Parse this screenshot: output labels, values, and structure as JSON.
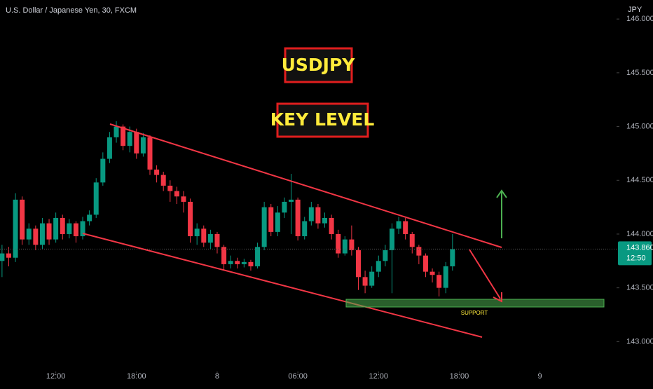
{
  "chart_data": {
    "type": "candlestick",
    "title": "U.S. Dollar / Japanese Yen, 30, FXCM",
    "currency": "JPY",
    "annotations": [
      "USDJPY",
      "KEY LEVEL",
      "SUPPORT"
    ],
    "up_color": "#089981",
    "down_color": "#f23645",
    "open": [
      143.75,
      143.82,
      143.78,
      144.32,
      143.95,
      144.05,
      143.9,
      144.1,
      143.95,
      144.15,
      144.0,
      144.1,
      143.98,
      144.12,
      144.18,
      144.48,
      144.7,
      144.9,
      145.0,
      144.82,
      144.95,
      144.75,
      144.9,
      144.6,
      144.55,
      144.45,
      144.4,
      144.35,
      144.3,
      143.98,
      144.05,
      143.92,
      144.0,
      143.88,
      143.72,
      143.75,
      143.72,
      143.74,
      143.7,
      143.88,
      144.25,
      144.02,
      144.2,
      144.3,
      144.32,
      143.98,
      144.12,
      144.25,
      144.1,
      144.15,
      144.0,
      143.82,
      143.95,
      143.85,
      143.6,
      143.52,
      143.65,
      143.75,
      143.85,
      144.05,
      144.12,
      144.0,
      143.88,
      143.8,
      143.65,
      143.62,
      143.5,
      143.7
    ],
    "high": [
      143.9,
      143.88,
      144.38,
      144.35,
      144.1,
      144.08,
      144.15,
      144.14,
      144.2,
      144.18,
      144.14,
      144.12,
      144.16,
      144.22,
      144.52,
      144.76,
      144.95,
      145.05,
      145.02,
      145.0,
      144.98,
      144.94,
      144.92,
      144.64,
      144.58,
      144.5,
      144.44,
      144.4,
      144.33,
      144.1,
      144.08,
      144.04,
      144.02,
      143.9,
      143.8,
      143.78,
      143.77,
      143.76,
      143.92,
      144.3,
      144.28,
      144.26,
      144.34,
      144.56,
      144.34,
      144.16,
      144.3,
      144.28,
      144.2,
      144.18,
      144.04,
      143.98,
      144.08,
      143.88,
      143.66,
      143.7,
      143.8,
      143.9,
      144.1,
      144.16,
      144.15,
      144.02,
      143.9,
      143.82,
      143.68,
      143.65,
      143.74,
      144.0
    ],
    "low": [
      143.6,
      143.7,
      143.74,
      143.9,
      143.9,
      143.85,
      143.86,
      143.9,
      143.92,
      143.95,
      143.96,
      143.92,
      143.95,
      144.08,
      144.15,
      144.45,
      144.66,
      144.85,
      144.78,
      144.76,
      144.7,
      144.72,
      144.55,
      144.48,
      144.4,
      144.3,
      144.28,
      144.2,
      143.92,
      143.9,
      143.88,
      143.86,
      143.82,
      143.66,
      143.68,
      143.68,
      143.69,
      143.66,
      143.68,
      143.85,
      143.98,
      143.98,
      144.15,
      144.0,
      143.94,
      143.95,
      144.08,
      144.05,
      144.06,
      143.95,
      143.78,
      143.8,
      143.8,
      143.48,
      143.45,
      143.5,
      143.6,
      143.7,
      143.45,
      144.0,
      143.95,
      143.82,
      143.72,
      143.6,
      143.55,
      143.42,
      143.45,
      143.66
    ],
    "close": [
      143.82,
      143.78,
      144.32,
      143.95,
      144.05,
      143.9,
      144.1,
      143.95,
      144.15,
      144.0,
      144.1,
      143.98,
      144.12,
      144.18,
      144.48,
      144.7,
      144.9,
      145.0,
      144.82,
      144.95,
      144.75,
      144.9,
      144.6,
      144.55,
      144.45,
      144.4,
      144.35,
      144.3,
      143.98,
      144.05,
      143.92,
      144.0,
      143.88,
      143.72,
      143.75,
      143.72,
      143.74,
      143.7,
      143.88,
      144.25,
      144.02,
      144.2,
      144.3,
      144.32,
      143.98,
      144.12,
      144.25,
      144.1,
      144.15,
      144.0,
      143.82,
      143.95,
      143.85,
      143.6,
      143.52,
      143.65,
      143.75,
      143.85,
      144.05,
      144.12,
      144.0,
      143.88,
      143.8,
      143.65,
      143.62,
      143.5,
      143.7,
      143.86
    ],
    "xlim": [
      -0.3,
      91.4
    ],
    "xticks": [
      {
        "value": 8,
        "label": "12:00"
      },
      {
        "value": 20,
        "label": "18:00"
      },
      {
        "value": 32,
        "label": "8"
      },
      {
        "value": 44,
        "label": "06:00"
      },
      {
        "value": 56,
        "label": "12:00"
      },
      {
        "value": 68,
        "label": "18:00"
      },
      {
        "value": 80,
        "label": "9"
      }
    ],
    "ylim": [
      142.722,
      146.177
    ],
    "yticks": [
      {
        "value": 143,
        "label": "143.000"
      },
      {
        "value": 143.5,
        "label": "143.500"
      },
      {
        "value": 144,
        "label": "144.000"
      },
      {
        "value": 144.5,
        "label": "144.500"
      },
      {
        "value": 145,
        "label": "145.000"
      },
      {
        "value": 145.5,
        "label": "145.500"
      },
      {
        "value": 146,
        "label": "146.000"
      }
    ],
    "last_price": {
      "value": 143.86,
      "label": "143.860"
    },
    "countdown": "12:50"
  }
}
